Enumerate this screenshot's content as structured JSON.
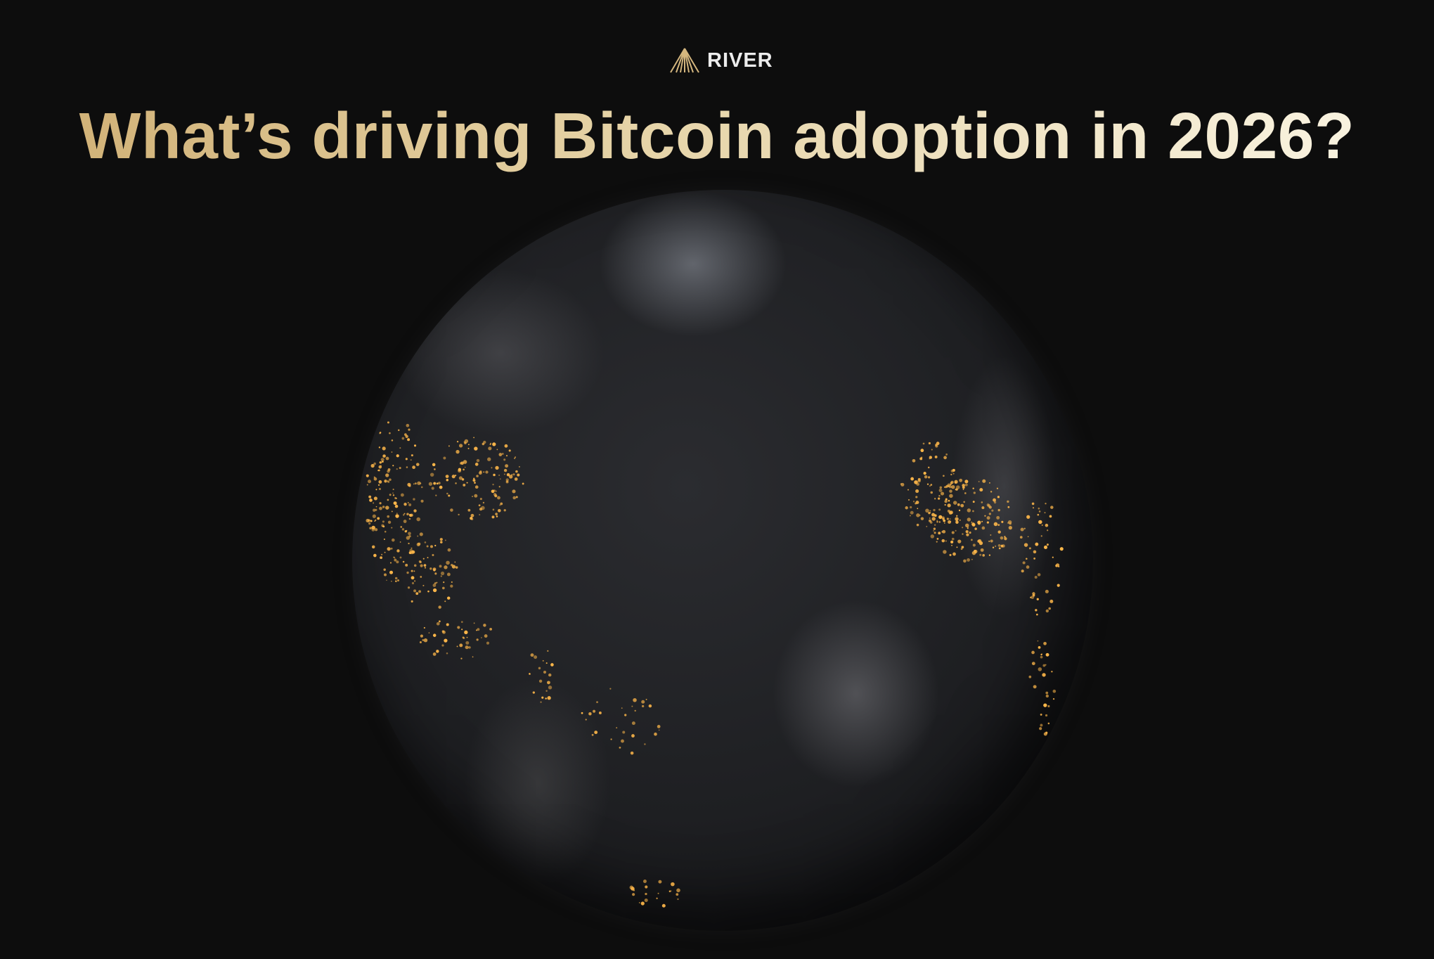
{
  "brand": {
    "name": "RIVER",
    "accent": "#d4b67e"
  },
  "headline": "What’s driving Bitcoin adoption in 2026?",
  "colors": {
    "background": "#0d0d0d",
    "city_lights": "#ffb84a"
  },
  "image": {
    "icon": "earth-at-night-globe"
  }
}
